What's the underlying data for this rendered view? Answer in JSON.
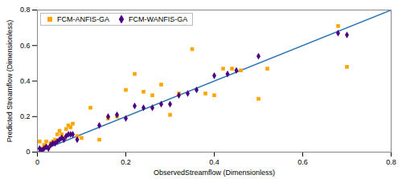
{
  "chart_data": {
    "type": "scatter",
    "xlabel": "ObservedStreamflow (Dimensionless)",
    "ylabel": "Predicted Streamflow (Dimensionless)",
    "xlim": [
      0,
      0.8
    ],
    "ylim": [
      0,
      0.8
    ],
    "xticks": [
      0,
      0.2,
      0.4,
      0.6,
      0.8
    ],
    "yticks": [
      0,
      0.2,
      0.4,
      0.6,
      0.8
    ],
    "grid": false,
    "legend": "upper left",
    "series": [
      {
        "type": "line",
        "color": "#2e75b6",
        "line_style": "solid",
        "x": [
          0,
          0.8
        ],
        "values": [
          0,
          0.8
        ]
      },
      {
        "name": "FCM-ANFIS-GA",
        "color": "#FFA500",
        "marker": "square",
        "x": [
          0.005,
          0.01,
          0.015,
          0.02,
          0.025,
          0.03,
          0.035,
          0.04,
          0.045,
          0.05,
          0.055,
          0.06,
          0.065,
          0.07,
          0.075,
          0.08,
          0.09,
          0.1,
          0.12,
          0.14,
          0.16,
          0.18,
          0.2,
          0.22,
          0.24,
          0.26,
          0.28,
          0.3,
          0.32,
          0.35,
          0.38,
          0.4,
          0.42,
          0.44,
          0.46,
          0.5,
          0.52,
          0.68,
          0.7
        ],
        "values": [
          0.06,
          0.02,
          0.04,
          0.06,
          0.03,
          0.05,
          0.06,
          0.07,
          0.1,
          0.12,
          0.1,
          0.08,
          0.13,
          0.15,
          0.14,
          0.16,
          0.09,
          0.08,
          0.25,
          0.07,
          0.19,
          0.2,
          0.35,
          0.44,
          0.34,
          0.32,
          0.38,
          0.21,
          0.33,
          0.58,
          0.33,
          0.32,
          0.47,
          0.47,
          0.46,
          0.3,
          0.47,
          0.71,
          0.48
        ]
      },
      {
        "name": "FCM-WANFIS-GA",
        "color": "#4B0082",
        "marker": "diamond",
        "x": [
          0.005,
          0.01,
          0.015,
          0.02,
          0.025,
          0.03,
          0.035,
          0.04,
          0.045,
          0.05,
          0.055,
          0.06,
          0.065,
          0.07,
          0.075,
          0.08,
          0.09,
          0.14,
          0.16,
          0.18,
          0.2,
          0.22,
          0.24,
          0.26,
          0.28,
          0.3,
          0.32,
          0.34,
          0.36,
          0.4,
          0.43,
          0.45,
          0.5,
          0.68,
          0.7
        ],
        "values": [
          0.02,
          0.01,
          0.02,
          0.03,
          0.02,
          0.04,
          0.05,
          0.05,
          0.06,
          0.07,
          0.08,
          0.07,
          0.09,
          0.1,
          0.1,
          0.1,
          0.07,
          0.15,
          0.2,
          0.21,
          0.19,
          0.26,
          0.25,
          0.25,
          0.27,
          0.27,
          0.32,
          0.33,
          0.35,
          0.43,
          0.44,
          0.46,
          0.54,
          0.67,
          0.66
        ]
      }
    ]
  }
}
